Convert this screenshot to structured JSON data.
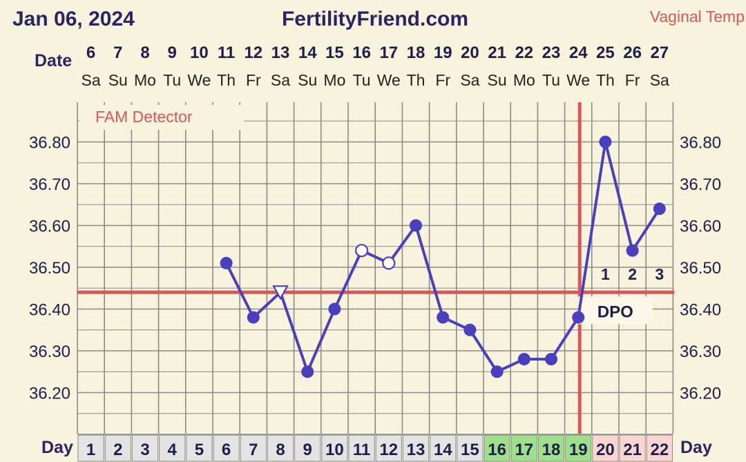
{
  "header": {
    "date": "Jan 06, 2024",
    "site": "FertilityFriend.com",
    "temp_type": "Vaginal Temp",
    "date_row_label": "Date",
    "day_row_label": "Day",
    "fam_label": "FAM Detector",
    "dpo_label": "DPO"
  },
  "colors": {
    "line": "#4a3fbf",
    "coverline": "#d9575a",
    "ovulation": "#d9575a",
    "fertile_green": "#9ee08a",
    "luteal_pink": "#fbd6d0",
    "cycle_day_gray": "#e3e3e3",
    "background": "#f7f3dc"
  },
  "chart_data": {
    "type": "line",
    "title": "FertilityFriend.com",
    "dates": [
      "6",
      "7",
      "8",
      "9",
      "10",
      "11",
      "12",
      "13",
      "14",
      "15",
      "16",
      "17",
      "18",
      "19",
      "20",
      "21",
      "22",
      "23",
      "24",
      "25",
      "26",
      "27"
    ],
    "weekdays": [
      "Sa",
      "Su",
      "Mo",
      "Tu",
      "We",
      "Th",
      "Fr",
      "Sa",
      "Su",
      "Mo",
      "Tu",
      "We",
      "Th",
      "Fr",
      "Sa",
      "Su",
      "Mo",
      "Tu",
      "We",
      "Th",
      "Fr",
      "Sa"
    ],
    "cycle_days": [
      "1",
      "2",
      "3",
      "4",
      "5",
      "6",
      "7",
      "8",
      "9",
      "10",
      "11",
      "12",
      "13",
      "14",
      "15",
      "16",
      "17",
      "18",
      "19",
      "20",
      "21",
      "22"
    ],
    "y_ticks": [
      "36.80",
      "36.70",
      "36.60",
      "36.50",
      "36.40",
      "36.30",
      "36.20"
    ],
    "ylim": [
      36.1,
      36.9
    ],
    "temps": [
      null,
      null,
      null,
      null,
      null,
      36.51,
      36.38,
      36.44,
      36.25,
      36.4,
      36.54,
      36.51,
      36.6,
      36.38,
      36.35,
      36.25,
      36.28,
      36.28,
      36.38,
      36.8,
      36.54,
      36.64
    ],
    "markers": [
      "none",
      "none",
      "none",
      "none",
      "none",
      "filled",
      "filled",
      "triangle",
      "filled",
      "filled",
      "open",
      "open",
      "filled",
      "filled",
      "filled",
      "filled",
      "filled",
      "filled",
      "filled",
      "filled",
      "filled",
      "filled"
    ],
    "coverline": 36.44,
    "ovulation_day": 19,
    "fertile_days": [
      16,
      17,
      18,
      19
    ],
    "luteal_days": [
      20,
      21,
      22
    ],
    "dpo": [
      "1",
      "2",
      "3"
    ]
  }
}
